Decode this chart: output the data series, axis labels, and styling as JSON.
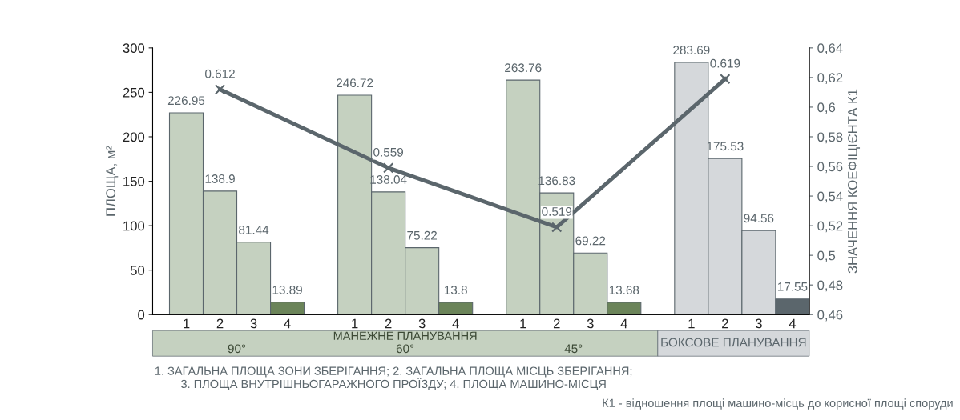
{
  "chart_data": {
    "type": "bar",
    "ylabel": "ПЛОЩА, м²",
    "y2label": "ЗНАЧЕННЯ КОЕФІЦІЄНТА К1",
    "categories": [
      "1",
      "2",
      "3",
      "4",
      null,
      "1",
      "2",
      "3",
      "4",
      null,
      "1",
      "2",
      "3",
      "4",
      null,
      "1",
      "2",
      "3",
      "4"
    ],
    "series": [
      {
        "values": [
          226.95,
          138.9,
          81.44,
          13.89,
          null,
          246.72,
          138.04,
          75.22,
          13.8,
          null,
          263.76,
          136.83,
          69.22,
          13.68,
          null,
          283.69,
          175.53,
          94.56,
          17.55
        ],
        "colors": [
          "#c5d1c0",
          "#c5d1c0",
          "#c5d1c0",
          "#6b8459",
          null,
          "#c5d1c0",
          "#c5d1c0",
          "#c5d1c0",
          "#6b8459",
          null,
          "#c5d1c0",
          "#c5d1c0",
          "#c5d1c0",
          "#6b8459",
          null,
          "#d5d8db",
          "#d5d8db",
          "#d5d8db",
          "#5b666c"
        ]
      },
      {
        "type": "line",
        "axis": "y2",
        "color": "#5b666c",
        "marker": "cross",
        "values": [
          null,
          0.612,
          null,
          null,
          null,
          null,
          0.559,
          null,
          null,
          null,
          null,
          0.519,
          null,
          null,
          null,
          null,
          0.619,
          null,
          null
        ]
      }
    ],
    "data_labels": true,
    "ylim": [
      0,
      300
    ],
    "yticks": [
      0,
      50,
      100,
      150,
      200,
      250,
      300
    ],
    "y2lim": [
      0.46,
      0.64
    ],
    "y2ticks": [
      {
        "value": 0.46,
        "label": "0,46"
      },
      {
        "value": 0.48,
        "label": "0,48"
      },
      {
        "value": 0.5,
        "label": "0,5"
      },
      {
        "value": 0.52,
        "label": "0,52"
      },
      {
        "value": 0.54,
        "label": "0,54"
      },
      {
        "value": 0.56,
        "label": "0,56"
      },
      {
        "value": 0.58,
        "label": "0,58"
      },
      {
        "value": 0.6,
        "label": "0,6"
      },
      {
        "value": 0.62,
        "label": "0,62"
      },
      {
        "value": 0.64,
        "label": "0,64"
      }
    ],
    "grid": false,
    "legend": false,
    "annotations": [
      "МАНЕЖНЕ ПЛАНУВАННЯ",
      "90°",
      "60°",
      "45°",
      "БОКСОВЕ ПЛАНУВАННЯ",
      "1. ЗАГАЛЬНА ПЛОЩА ЗОНИ ЗБЕРІГАННЯ; 2. ЗАГАЛЬНА ПЛОЩА МІСЦЬ ЗБЕРІГАННЯ;\n3. ПЛОЩА ВНУТРІШНЬОГАРАЖНОГО ПРОЇЗДУ; 4. ПЛОЩА МАШИНО-МІСЦЯ",
      "К1 - відношення площі машино-місць до корисної площі споруди"
    ]
  }
}
